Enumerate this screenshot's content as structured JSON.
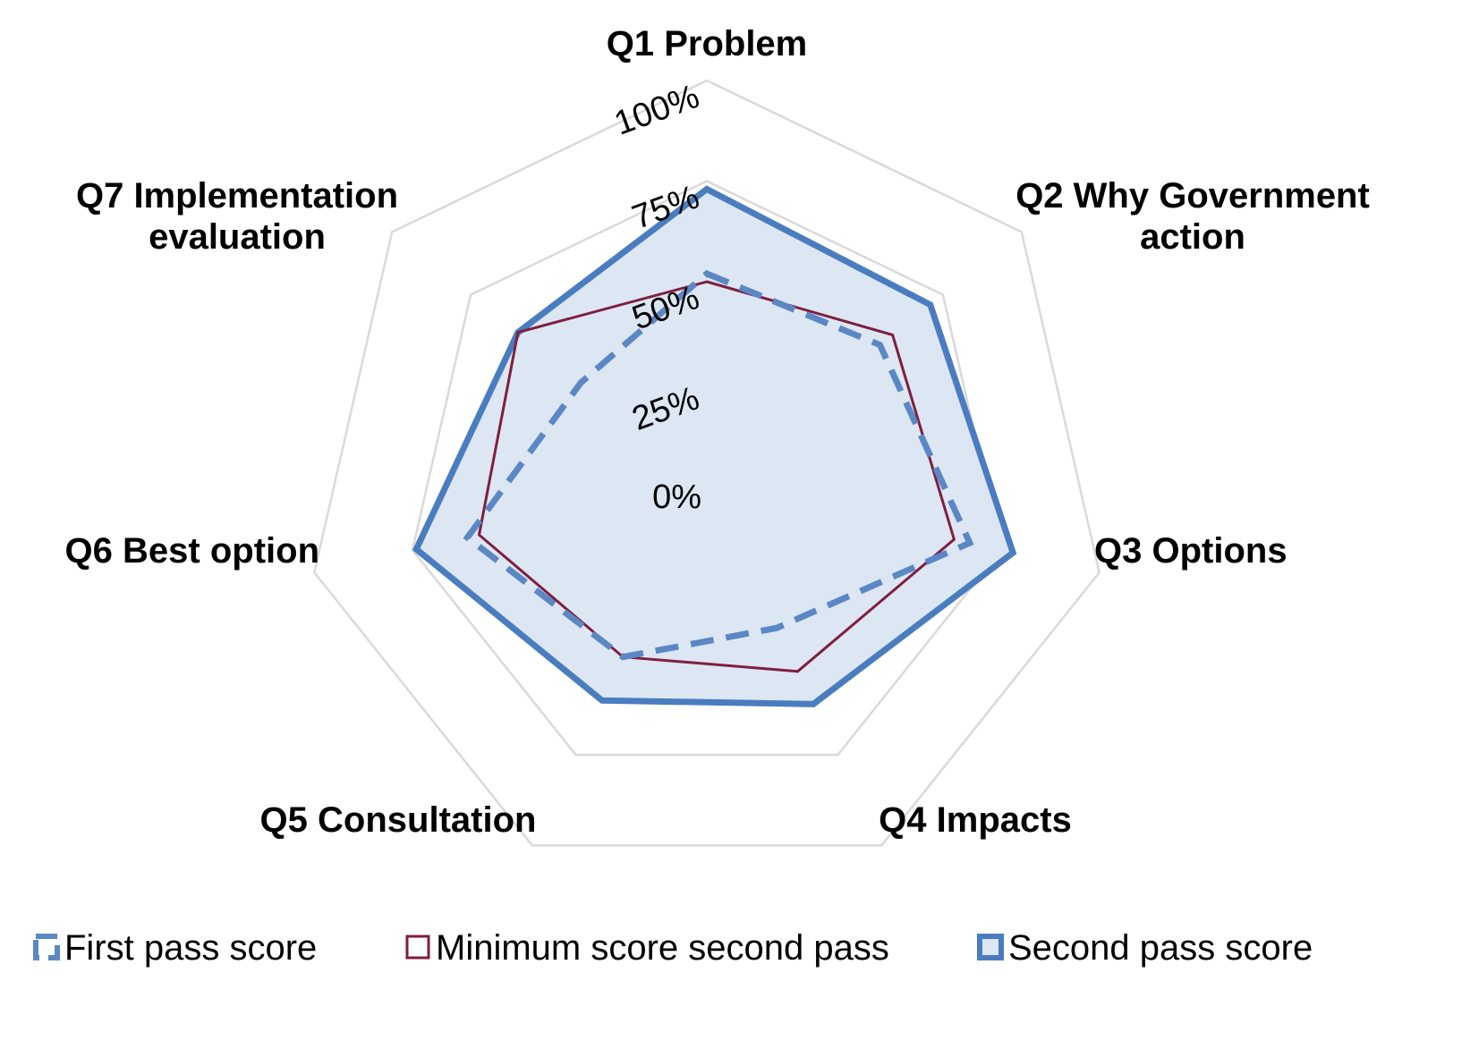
{
  "chart_data": {
    "type": "radar",
    "categories": [
      [
        "Q1 Problem"
      ],
      [
        "Q2 Why Government",
        "action"
      ],
      [
        "Q3 Options"
      ],
      [
        "Q4 Impacts"
      ],
      [
        "Q5 Consultation"
      ],
      [
        "Q6 Best option"
      ],
      [
        "Q7 Implementation",
        "evaluation"
      ]
    ],
    "ticks": [
      0,
      25,
      50,
      75,
      100
    ],
    "tick_labels": [
      "0%",
      "25%",
      "50%",
      "75%",
      "100%"
    ],
    "range": [
      0,
      100
    ],
    "series": [
      {
        "name": "First pass score",
        "style": "dashed",
        "color": "#5b87c5",
        "values": [
          52,
          55,
          67,
          40,
          48,
          61,
          40
        ]
      },
      {
        "name": "Minimum score second pass",
        "style": "thin",
        "color": "#7f1e3f",
        "values": [
          50,
          59,
          63,
          52,
          48,
          58,
          60
        ]
      },
      {
        "name": "Second pass score",
        "style": "filled",
        "color": "#4a7cc0",
        "fill": "#dde7f3",
        "values": [
          73,
          71,
          78,
          61,
          60,
          74,
          60
        ]
      }
    ],
    "legend_position": "bottom"
  }
}
